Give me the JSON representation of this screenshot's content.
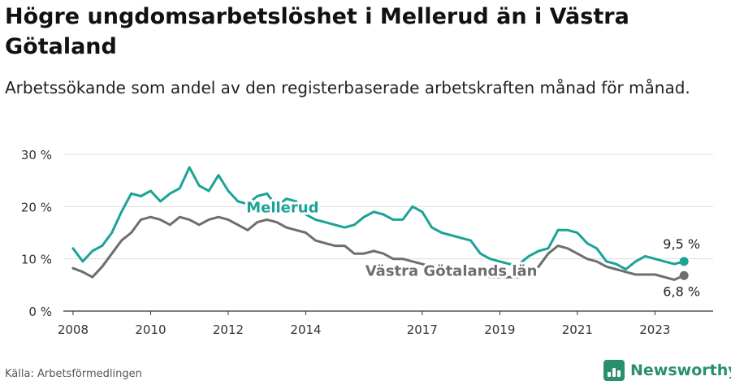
{
  "header": {
    "title": "Högre ungdomsarbetslöshet i Mellerud än i Västra Götaland",
    "subtitle": "Arbetssökande som andel av den registerbaserade arbetskraften månad för månad."
  },
  "footer": {
    "source": "Källa: Arbetsförmedlingen",
    "brand": "Newsworthy",
    "brand_icon": "bar-chart-logo-icon"
  },
  "colors": {
    "mellerud": "#1aa396",
    "vg": "#6e6e70",
    "grid": "#dddddd",
    "axis": "#333333",
    "brand": "#2a8f6f"
  },
  "chart_data": {
    "type": "line",
    "ylim": [
      0,
      30
    ],
    "yticks": [
      0,
      10,
      20,
      30
    ],
    "ytick_labels": [
      "0 %",
      "10 %",
      "20 %",
      "30 %"
    ],
    "xlim": [
      2007.75,
      2024.5
    ],
    "xticks": [
      2008,
      2010,
      2012,
      2014,
      2017,
      2019,
      2021,
      2023
    ],
    "xtick_labels": [
      "2008",
      "2010",
      "2012",
      "2014",
      "2017",
      "2019",
      "2021",
      "2023"
    ],
    "series": [
      {
        "name": "Mellerud",
        "label_text": "Mellerud",
        "color": "#1aa396",
        "end_label": "9,5 %",
        "points": [
          [
            2008.0,
            12.0
          ],
          [
            2008.25,
            9.5
          ],
          [
            2008.5,
            11.5
          ],
          [
            2008.75,
            12.5
          ],
          [
            2009.0,
            15.0
          ],
          [
            2009.25,
            19.0
          ],
          [
            2009.5,
            22.5
          ],
          [
            2009.75,
            22.0
          ],
          [
            2010.0,
            23.0
          ],
          [
            2010.25,
            21.0
          ],
          [
            2010.5,
            22.5
          ],
          [
            2010.75,
            23.5
          ],
          [
            2011.0,
            27.5
          ],
          [
            2011.25,
            24.0
          ],
          [
            2011.5,
            23.0
          ],
          [
            2011.75,
            26.0
          ],
          [
            2012.0,
            23.0
          ],
          [
            2012.25,
            21.0
          ],
          [
            2012.5,
            20.5
          ],
          [
            2012.75,
            22.0
          ],
          [
            2013.0,
            22.5
          ],
          [
            2013.25,
            20.0
          ],
          [
            2013.5,
            21.5
          ],
          [
            2013.75,
            21.0
          ],
          [
            2014.0,
            18.5
          ],
          [
            2014.25,
            17.5
          ],
          [
            2014.5,
            17.0
          ],
          [
            2014.75,
            16.5
          ],
          [
            2015.0,
            16.0
          ],
          [
            2015.25,
            16.5
          ],
          [
            2015.5,
            18.0
          ],
          [
            2015.75,
            19.0
          ],
          [
            2016.0,
            18.5
          ],
          [
            2016.25,
            17.5
          ],
          [
            2016.5,
            17.5
          ],
          [
            2016.75,
            20.0
          ],
          [
            2017.0,
            19.0
          ],
          [
            2017.25,
            16.0
          ],
          [
            2017.5,
            15.0
          ],
          [
            2017.75,
            14.5
          ],
          [
            2018.0,
            14.0
          ],
          [
            2018.25,
            13.5
          ],
          [
            2018.5,
            11.0
          ],
          [
            2018.75,
            10.0
          ],
          [
            2019.0,
            9.5
          ],
          [
            2019.25,
            9.0
          ],
          [
            2019.5,
            9.0
          ],
          [
            2019.75,
            10.5
          ],
          [
            2020.0,
            11.5
          ],
          [
            2020.25,
            12.0
          ],
          [
            2020.5,
            15.5
          ],
          [
            2020.75,
            15.5
          ],
          [
            2021.0,
            15.0
          ],
          [
            2021.25,
            13.0
          ],
          [
            2021.5,
            12.0
          ],
          [
            2021.75,
            9.5
          ],
          [
            2022.0,
            9.0
          ],
          [
            2022.25,
            8.0
          ],
          [
            2022.5,
            9.5
          ],
          [
            2022.75,
            10.5
          ],
          [
            2023.0,
            10.0
          ],
          [
            2023.25,
            9.5
          ],
          [
            2023.5,
            9.0
          ],
          [
            2023.75,
            9.5
          ]
        ]
      },
      {
        "name": "Västra Götalands län",
        "label_text": "Västra Götalands län",
        "color": "#6e6e70",
        "end_label": "6,8 %",
        "points": [
          [
            2008.0,
            8.2
          ],
          [
            2008.25,
            7.5
          ],
          [
            2008.5,
            6.5
          ],
          [
            2008.75,
            8.5
          ],
          [
            2009.0,
            11.0
          ],
          [
            2009.25,
            13.5
          ],
          [
            2009.5,
            15.0
          ],
          [
            2009.75,
            17.5
          ],
          [
            2010.0,
            18.0
          ],
          [
            2010.25,
            17.5
          ],
          [
            2010.5,
            16.5
          ],
          [
            2010.75,
            18.0
          ],
          [
            2011.0,
            17.5
          ],
          [
            2011.25,
            16.5
          ],
          [
            2011.5,
            17.5
          ],
          [
            2011.75,
            18.0
          ],
          [
            2012.0,
            17.5
          ],
          [
            2012.25,
            16.5
          ],
          [
            2012.5,
            15.5
          ],
          [
            2012.75,
            17.0
          ],
          [
            2013.0,
            17.5
          ],
          [
            2013.25,
            17.0
          ],
          [
            2013.5,
            16.0
          ],
          [
            2013.75,
            15.5
          ],
          [
            2014.0,
            15.0
          ],
          [
            2014.25,
            13.5
          ],
          [
            2014.5,
            13.0
          ],
          [
            2014.75,
            12.5
          ],
          [
            2015.0,
            12.5
          ],
          [
            2015.25,
            11.0
          ],
          [
            2015.5,
            11.0
          ],
          [
            2015.75,
            11.5
          ],
          [
            2016.0,
            11.0
          ],
          [
            2016.25,
            10.0
          ],
          [
            2016.5,
            10.0
          ],
          [
            2016.75,
            9.5
          ],
          [
            2017.0,
            9.0
          ],
          [
            2017.25,
            8.5
          ],
          [
            2017.5,
            8.0
          ],
          [
            2017.75,
            8.0
          ],
          [
            2018.0,
            7.5
          ],
          [
            2018.25,
            7.0
          ],
          [
            2018.5,
            7.0
          ],
          [
            2018.75,
            6.5
          ],
          [
            2019.0,
            6.5
          ],
          [
            2019.25,
            6.5
          ],
          [
            2019.5,
            6.5
          ],
          [
            2019.75,
            7.5
          ],
          [
            2020.0,
            8.5
          ],
          [
            2020.25,
            11.0
          ],
          [
            2020.5,
            12.5
          ],
          [
            2020.75,
            12.0
          ],
          [
            2021.0,
            11.0
          ],
          [
            2021.25,
            10.0
          ],
          [
            2021.5,
            9.5
          ],
          [
            2021.75,
            8.5
          ],
          [
            2022.0,
            8.0
          ],
          [
            2022.25,
            7.5
          ],
          [
            2022.5,
            7.0
          ],
          [
            2022.75,
            7.0
          ],
          [
            2023.0,
            7.0
          ],
          [
            2023.25,
            6.5
          ],
          [
            2023.5,
            6.0
          ],
          [
            2023.75,
            6.8
          ]
        ]
      }
    ]
  }
}
